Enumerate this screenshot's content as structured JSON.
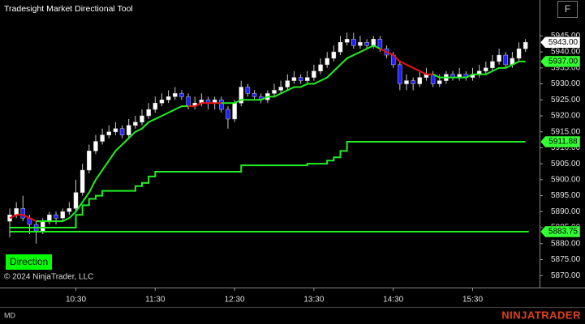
{
  "header": {
    "title": "Tradesight Market Directional Tool",
    "window_button": "F",
    "direction_button": "Direction",
    "copyright": "© 2024 NinjaTrader, LLC",
    "instrument": "MD",
    "logo": "NINJATRADER"
  },
  "chart_data": {
    "type": "candlestick",
    "categories": [
      null,
      null,
      null,
      null,
      null,
      null,
      null,
      null,
      null,
      null,
      "10:30",
      null,
      null,
      null,
      null,
      null,
      null,
      null,
      null,
      null,
      null,
      null,
      "11:30",
      null,
      null,
      null,
      null,
      null,
      null,
      null,
      null,
      null,
      null,
      null,
      "12:30",
      null,
      null,
      null,
      null,
      null,
      null,
      null,
      null,
      null,
      null,
      null,
      "13:30",
      null,
      null,
      null,
      null,
      null,
      null,
      null,
      null,
      null,
      null,
      null,
      "14:30",
      null,
      null,
      null,
      null,
      null,
      null,
      null,
      null,
      null,
      null,
      null,
      "15:30",
      null,
      null,
      null,
      null,
      null,
      null,
      null,
      null
    ],
    "open": [
      5887,
      5889,
      5891,
      5888,
      5886,
      5884,
      5887,
      5889,
      5888,
      5890,
      5891,
      5896,
      5903,
      5909,
      5912,
      5914,
      5915,
      5916,
      5914,
      5917,
      5918,
      5920,
      5922,
      5924,
      5925,
      5926,
      5927,
      5926,
      5923,
      5924,
      5925,
      5924,
      5925,
      5922,
      5919,
      5924,
      5929,
      5927,
      5926,
      5925,
      5927,
      5928,
      5929,
      5931,
      5932,
      5931,
      5932,
      5934,
      5936,
      5938,
      5940,
      5943,
      5944,
      5942,
      5943,
      5942,
      5944,
      5941,
      5939,
      5936,
      5930,
      5931,
      5930,
      5932,
      5933,
      5930,
      5931,
      5933,
      5932,
      5933,
      5932,
      5933,
      5934,
      5935,
      5937,
      5939,
      5936,
      5938,
      5941
    ],
    "high": [
      5891,
      5893,
      5895,
      5889,
      5887,
      5888,
      5890,
      5890,
      5891,
      5893,
      5900,
      5905,
      5911,
      5914,
      5916,
      5917,
      5918,
      5917,
      5919,
      5920,
      5922,
      5924,
      5926,
      5927,
      5928,
      5929,
      5928,
      5927,
      5926,
      5927,
      5926,
      5926,
      5926,
      5923,
      5925,
      5931,
      5930,
      5928,
      5927,
      5928,
      5930,
      5931,
      5933,
      5934,
      5933,
      5934,
      5936,
      5938,
      5940,
      5942,
      5945,
      5946,
      5946,
      5945,
      5944,
      5945,
      5945,
      5942,
      5940,
      5937,
      5933,
      5932,
      5934,
      5935,
      5934,
      5933,
      5934,
      5934,
      5935,
      5934,
      5935,
      5936,
      5937,
      5939,
      5941,
      5940,
      5940,
      5943,
      5944
    ],
    "low": [
      5882,
      5888,
      5887,
      5883,
      5880,
      5883,
      5886,
      5886,
      5887,
      5889,
      5890,
      5895,
      5902,
      5908,
      5911,
      5913,
      5914,
      5913,
      5913,
      5916,
      5917,
      5919,
      5921,
      5923,
      5924,
      5925,
      5925,
      5922,
      5922,
      5923,
      5922,
      5922,
      5921,
      5916,
      5918,
      5923,
      5926,
      5925,
      5924,
      5924,
      5926,
      5927,
      5928,
      5930,
      5930,
      5930,
      5931,
      5933,
      5935,
      5937,
      5939,
      5942,
      5941,
      5941,
      5941,
      5941,
      5940,
      5938,
      5935,
      5928,
      5928,
      5928,
      5929,
      5931,
      5929,
      5929,
      5930,
      5931,
      5931,
      5931,
      5931,
      5932,
      5933,
      5934,
      5936,
      5935,
      5935,
      5937,
      5940
    ],
    "close": [
      5889,
      5891,
      5888,
      5886,
      5884,
      5887,
      5889,
      5888,
      5890,
      5891,
      5896,
      5903,
      5909,
      5912,
      5914,
      5915,
      5916,
      5914,
      5917,
      5918,
      5920,
      5922,
      5924,
      5925,
      5926,
      5927,
      5926,
      5923,
      5924,
      5925,
      5924,
      5925,
      5922,
      5919,
      5924,
      5929,
      5927,
      5926,
      5925,
      5927,
      5928,
      5929,
      5931,
      5932,
      5931,
      5932,
      5934,
      5936,
      5938,
      5940,
      5943,
      5944,
      5942,
      5943,
      5942,
      5944,
      5941,
      5939,
      5936,
      5930,
      5931,
      5930,
      5932,
      5933,
      5930,
      5931,
      5933,
      5932,
      5933,
      5932,
      5933,
      5934,
      5935,
      5937,
      5939,
      5936,
      5938,
      5941,
      5943
    ],
    "last_label": "5943.00",
    "up_color": "#ffffff",
    "down_color": "#1f1fff",
    "wick_color": "#c8c8c8",
    "lines": [
      {
        "color": "#22ee22",
        "values": [
          null,
          null,
          null,
          null,
          5887,
          5887,
          5887,
          5887,
          5887,
          5888,
          5890,
          5893,
          5896,
          5900,
          5903,
          5906,
          5909,
          5911,
          5913,
          5915,
          5916,
          5918,
          5919,
          5920,
          5921,
          5922,
          5923,
          5923,
          null,
          null,
          null,
          null,
          5924,
          5924,
          5924,
          5925,
          5925,
          5925,
          5925,
          5926,
          5926,
          5927,
          5928,
          5929,
          5929,
          5930,
          5930,
          5931,
          5932,
          5934,
          5936,
          5938,
          5939,
          5940,
          5941,
          5942,
          5941,
          null,
          null,
          null,
          null,
          null,
          null,
          null,
          5933,
          5932,
          5932,
          5932,
          5932,
          5932,
          5933,
          5933,
          5933,
          5934,
          5935,
          5935,
          5936,
          5937,
          5937
        ],
        "value_label": "5937.00"
      },
      {
        "color": "#ee1111",
        "values": [
          5888,
          5889,
          5889,
          5888,
          5887,
          null,
          null,
          null,
          null,
          null,
          null,
          null,
          null,
          null,
          null,
          null,
          null,
          null,
          null,
          null,
          null,
          null,
          null,
          null,
          null,
          null,
          null,
          5923,
          5923,
          5924,
          5924,
          5924,
          5924,
          null,
          null,
          null,
          null,
          null,
          null,
          null,
          null,
          null,
          null,
          null,
          null,
          null,
          null,
          null,
          null,
          null,
          null,
          null,
          null,
          null,
          null,
          null,
          5941,
          5940,
          5939,
          5937,
          5936,
          5935,
          5934,
          5933,
          5933,
          null,
          null,
          null,
          null,
          null,
          null,
          null,
          null,
          null,
          null,
          null,
          null,
          null,
          null
        ]
      },
      {
        "color": "#22ee22",
        "step": true,
        "values": [
          5885,
          5885,
          5885,
          5885,
          5885,
          5885,
          5885,
          5885,
          5885,
          5885,
          5889,
          5892,
          5894,
          5895,
          5896.5,
          5896.5,
          5896.5,
          5896.5,
          5896.5,
          5898,
          5899,
          5901,
          5902.5,
          5902.5,
          5902.5,
          5902.5,
          5902.5,
          5902.5,
          5902.5,
          5902.5,
          5902.5,
          5902.5,
          5902.5,
          5902.5,
          5902.5,
          5904.5,
          5904.5,
          5904.5,
          5904.5,
          5904.5,
          5904.5,
          5904.5,
          5904.5,
          5904.5,
          5904.5,
          5905,
          5905,
          5905,
          5906,
          5907,
          5909,
          5911.88,
          5911.88,
          5911.88,
          5911.88,
          5911.88,
          5911.88,
          5911.88,
          5911.88,
          5911.88,
          5911.88,
          5911.88,
          5911.88,
          5911.88,
          5911.88,
          5911.88,
          5911.88,
          5911.88,
          5911.88,
          5911.88,
          5911.88,
          5911.88,
          5911.88,
          5911.88,
          5911.88,
          5911.88,
          5911.88,
          5911.88,
          5911.88
        ],
        "value_label": "5911.88"
      }
    ],
    "hlines": [
      {
        "color": "#22ee22",
        "level": 5883.75,
        "value_label": "5883.75"
      }
    ],
    "ylim": [
      5866.25,
      5956.25
    ],
    "yticks": [
      {
        "value": 5870,
        "label": "5870.00"
      },
      {
        "value": 5875,
        "label": "5875.00"
      },
      {
        "value": 5880,
        "label": "5880.00"
      },
      {
        "value": 5885,
        "label": "5885.00"
      },
      {
        "value": 5890,
        "label": "5890.00"
      },
      {
        "value": 5895,
        "label": "5895.00"
      },
      {
        "value": 5900,
        "label": "5900.00"
      },
      {
        "value": 5905,
        "label": "5905.00"
      },
      {
        "value": 5910,
        "label": "5910.00"
      },
      {
        "value": 5915,
        "label": "5915.00"
      },
      {
        "value": 5920,
        "label": "5920.00"
      },
      {
        "value": 5925,
        "label": "5925.00"
      },
      {
        "value": 5930,
        "label": "5930.00"
      },
      {
        "value": 5935,
        "label": "5935.00"
      },
      {
        "value": 5940,
        "label": "5940.00"
      },
      {
        "value": 5945,
        "label": "5945.00"
      }
    ],
    "grid": false
  }
}
